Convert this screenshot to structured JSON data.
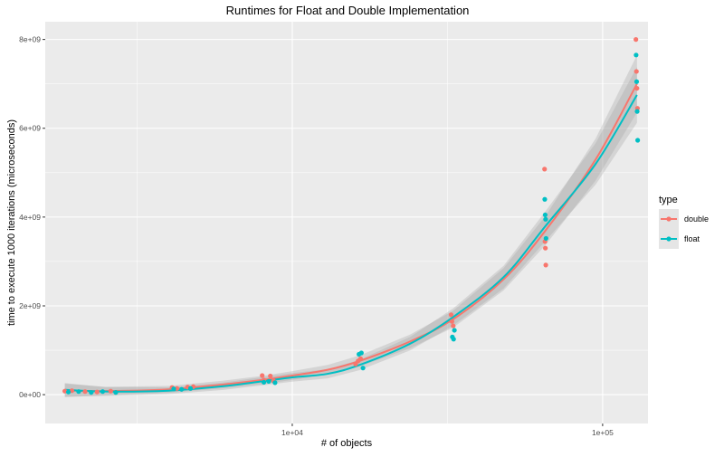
{
  "chart_data": {
    "type": "scatter",
    "title": "Runtimes for Float and Double Implementation",
    "xlabel": "# of objects",
    "ylabel": "time to execute 1000 iterations (microseconds)",
    "x_scale": "log10",
    "xlim": [
      1600,
      140000
    ],
    "ylim": [
      -650000000,
      8400000000
    ],
    "x_ticks": [
      {
        "value": 10000,
        "label": "1e+04"
      },
      {
        "value": 100000,
        "label": "1e+05"
      }
    ],
    "y_ticks": [
      {
        "value": 0,
        "label": "0e+00"
      },
      {
        "value": 2000000000,
        "label": "2e+09"
      },
      {
        "value": 4000000000,
        "label": "4e+09"
      },
      {
        "value": 6000000000,
        "label": "6e+09"
      },
      {
        "value": 8000000000,
        "label": "8e+09"
      }
    ],
    "grid": true,
    "legend": {
      "title": "type",
      "position": "right"
    },
    "series": [
      {
        "name": "double",
        "color": "#F8766D",
        "points": [
          [
            1850,
            80000000
          ],
          [
            1950,
            90000000
          ],
          [
            2150,
            70000000
          ],
          [
            2350,
            60000000
          ],
          [
            2600,
            80000000
          ],
          [
            4100,
            160000000
          ],
          [
            4250,
            140000000
          ],
          [
            4600,
            170000000
          ],
          [
            4800,
            180000000
          ],
          [
            8000,
            430000000
          ],
          [
            8100,
            330000000
          ],
          [
            8500,
            420000000
          ],
          [
            8700,
            310000000
          ],
          [
            16000,
            690000000
          ],
          [
            16300,
            760000000
          ],
          [
            16600,
            810000000
          ],
          [
            32500,
            1800000000
          ],
          [
            32700,
            1650000000
          ],
          [
            33000,
            1550000000
          ],
          [
            65000,
            5080000000
          ],
          [
            65200,
            3450000000
          ],
          [
            65400,
            3300000000
          ],
          [
            65600,
            2920000000
          ],
          [
            128000,
            8000000000
          ],
          [
            128500,
            7280000000
          ],
          [
            129000,
            6900000000
          ],
          [
            129500,
            6450000000
          ]
        ],
        "smooth": [
          [
            1850,
            95000000
          ],
          [
            2500,
            80000000
          ],
          [
            4000,
            120000000
          ],
          [
            6000,
            230000000
          ],
          [
            8000,
            330000000
          ],
          [
            10000,
            430000000
          ],
          [
            13000,
            560000000
          ],
          [
            16500,
            760000000
          ],
          [
            24000,
            1200000000
          ],
          [
            33000,
            1700000000
          ],
          [
            48000,
            2600000000
          ],
          [
            65500,
            3700000000
          ],
          [
            95000,
            5300000000
          ],
          [
            129000,
            7000000000
          ]
        ]
      },
      {
        "name": "float",
        "color": "#00BFC4",
        "points": [
          [
            1900,
            60000000
          ],
          [
            2050,
            70000000
          ],
          [
            2250,
            50000000
          ],
          [
            2450,
            70000000
          ],
          [
            2700,
            50000000
          ],
          [
            4150,
            130000000
          ],
          [
            4400,
            120000000
          ],
          [
            4700,
            140000000
          ],
          [
            8100,
            280000000
          ],
          [
            8400,
            300000000
          ],
          [
            8800,
            270000000
          ],
          [
            16400,
            910000000
          ],
          [
            16700,
            940000000
          ],
          [
            16900,
            600000000
          ],
          [
            32800,
            1300000000
          ],
          [
            33100,
            1250000000
          ],
          [
            33300,
            1450000000
          ],
          [
            65100,
            4400000000
          ],
          [
            65300,
            4050000000
          ],
          [
            65500,
            3950000000
          ],
          [
            65700,
            3520000000
          ],
          [
            128200,
            7650000000
          ],
          [
            128700,
            7050000000
          ],
          [
            129200,
            6380000000
          ],
          [
            129700,
            5730000000
          ]
        ],
        "smooth": [
          [
            1850,
            110000000
          ],
          [
            2500,
            70000000
          ],
          [
            4000,
            90000000
          ],
          [
            6000,
            190000000
          ],
          [
            8000,
            300000000
          ],
          [
            10000,
            390000000
          ],
          [
            13000,
            470000000
          ],
          [
            16500,
            670000000
          ],
          [
            24000,
            1150000000
          ],
          [
            33000,
            1750000000
          ],
          [
            48000,
            2650000000
          ],
          [
            65500,
            3800000000
          ],
          [
            95000,
            5200000000
          ],
          [
            129000,
            6750000000
          ]
        ]
      }
    ]
  }
}
